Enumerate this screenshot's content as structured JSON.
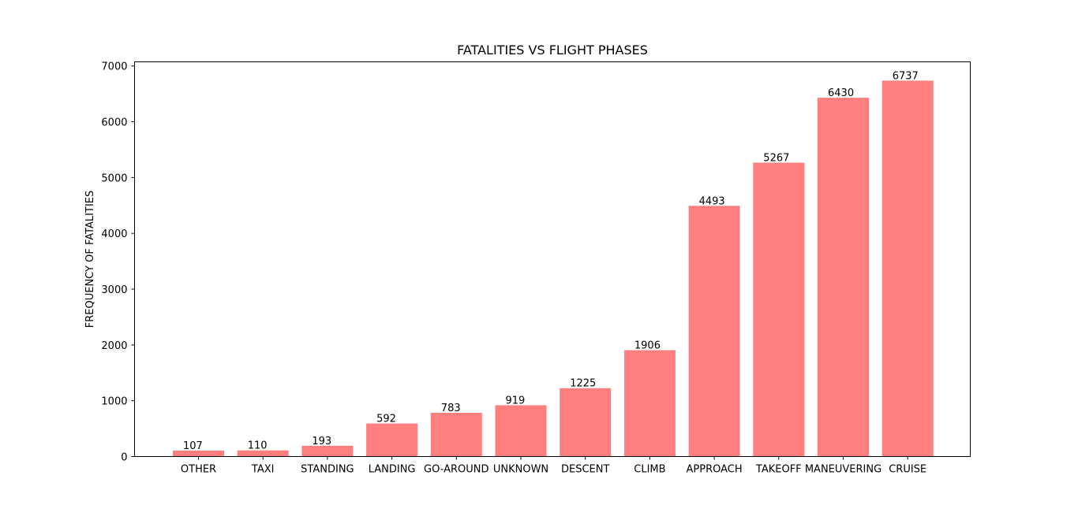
{
  "chart_data": {
    "type": "bar",
    "title": "FATALITIES VS FLIGHT PHASES",
    "xlabel": "",
    "ylabel": "FREQUENCY OF FATALITIES",
    "categories": [
      "OTHER",
      "TAXI",
      "STANDING",
      "LANDING",
      "GO-AROUND",
      "UNKNOWN",
      "DESCENT",
      "CLIMB",
      "APPROACH",
      "TAKEOFF",
      "MANEUVERING",
      "CRUISE"
    ],
    "values": [
      107,
      110,
      193,
      592,
      783,
      919,
      1225,
      1906,
      4493,
      5267,
      6430,
      6737
    ],
    "data_labels": [
      "107",
      "110",
      "193",
      "592",
      "783",
      "919",
      "1225",
      "1906",
      "4493",
      "5267",
      "6430",
      "6737"
    ],
    "y_ticks": [
      0,
      1000,
      2000,
      3000,
      4000,
      5000,
      6000,
      7000
    ],
    "y_tick_labels": [
      "0",
      "1000",
      "2000",
      "3000",
      "4000",
      "5000",
      "6000",
      "7000"
    ],
    "ylim": [
      0,
      7074
    ],
    "grid": false,
    "legend": "none",
    "colors": {
      "bar": "#ff7f7f",
      "axis": "#000000",
      "text": "#000000",
      "background": "#ffffff"
    }
  }
}
